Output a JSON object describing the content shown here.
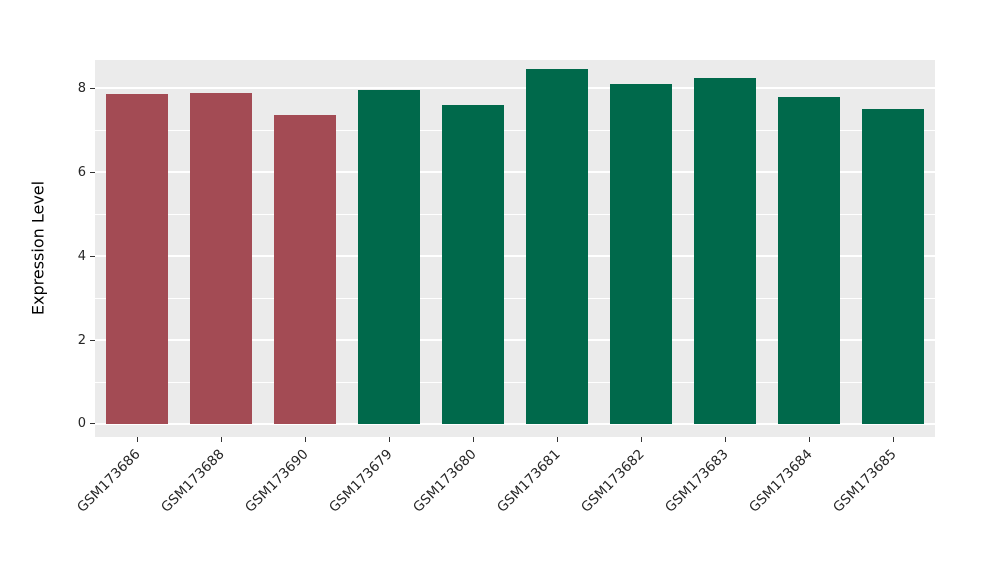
{
  "chart_data": {
    "type": "bar",
    "title": "",
    "xlabel": "",
    "ylabel": "Expression Level",
    "categories": [
      "GSM173686",
      "GSM173688",
      "GSM173690",
      "GSM173679",
      "GSM173680",
      "GSM173681",
      "GSM173682",
      "GSM173683",
      "GSM173684",
      "GSM173685"
    ],
    "values": [
      7.85,
      7.88,
      7.35,
      7.95,
      7.6,
      8.45,
      8.1,
      8.25,
      7.8,
      7.5
    ],
    "bar_colors": [
      "#a34b54",
      "#a34b54",
      "#a34b54",
      "#00694b",
      "#00694b",
      "#00694b",
      "#00694b",
      "#00694b",
      "#00694b",
      "#00694b"
    ],
    "groups": [
      {
        "name": "group-red",
        "color": "#a34b54",
        "categories": [
          "GSM173686",
          "GSM173688",
          "GSM173690"
        ]
      },
      {
        "name": "group-green",
        "color": "#00694b",
        "categories": [
          "GSM173679",
          "GSM173680",
          "GSM173681",
          "GSM173682",
          "GSM173683",
          "GSM173684",
          "GSM173685"
        ]
      }
    ],
    "yticks_major": [
      0,
      2,
      4,
      6,
      8
    ],
    "yticks_minor": [
      1,
      3,
      5,
      7
    ],
    "ylim": [
      -0.31,
      8.67
    ],
    "grid": true,
    "legend": false,
    "panel_background": "#ebebeb",
    "gridline_color": "#ffffff",
    "bar_width_fraction": 0.74
  }
}
